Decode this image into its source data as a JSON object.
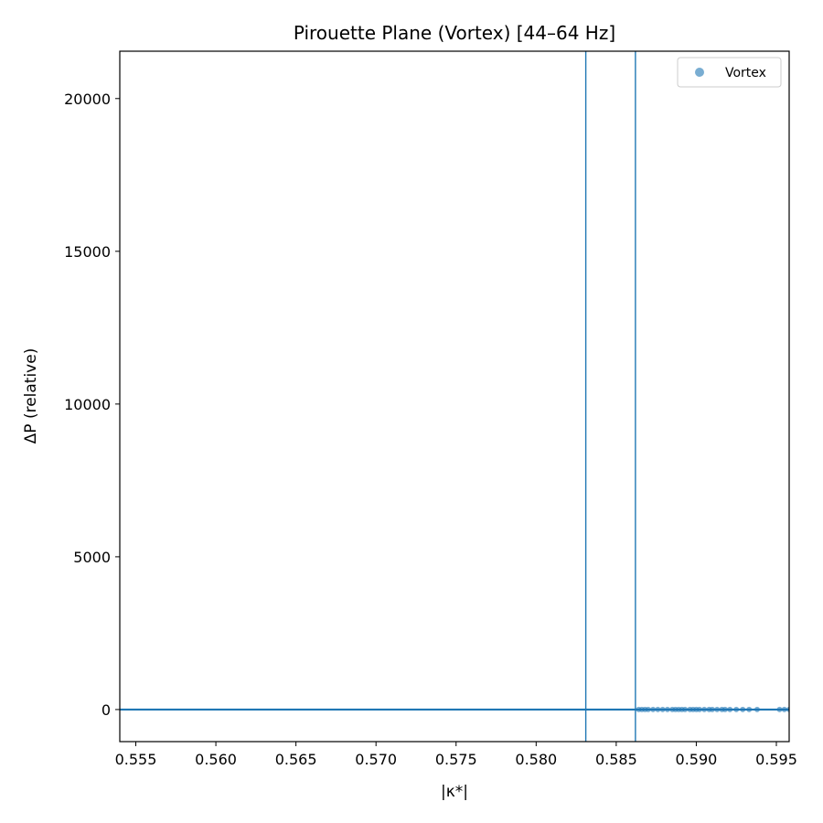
{
  "chart_data": {
    "type": "scatter",
    "title": "Pirouette Plane (Vortex)  [44–64 Hz]",
    "xlabel": "|κ*|",
    "ylabel": "ΔP (relative)",
    "xlim": [
      0.554,
      0.5958
    ],
    "ylim": [
      -1050,
      21550
    ],
    "x_ticks": [
      0.555,
      0.56,
      0.565,
      0.57,
      0.575,
      0.58,
      0.585,
      0.59,
      0.595
    ],
    "x_tick_labels": [
      "0.555",
      "0.560",
      "0.565",
      "0.570",
      "0.575",
      "0.580",
      "0.585",
      "0.590",
      "0.595"
    ],
    "y_ticks": [
      0,
      5000,
      10000,
      15000,
      20000
    ],
    "y_tick_labels": [
      "0",
      "5000",
      "10000",
      "15000",
      "20000"
    ],
    "grid": false,
    "legend": {
      "position": "top-right",
      "entries": [
        "Vortex"
      ]
    },
    "colors": {
      "series": "#1f77b4",
      "axes": "#000000"
    },
    "hlines": [
      0
    ],
    "vlines": [
      0.5831,
      0.5862
    ],
    "series": [
      {
        "name": "Vortex",
        "x": [
          0.5864,
          0.5866,
          0.5868,
          0.587,
          0.5873,
          0.5876,
          0.5879,
          0.5882,
          0.5885,
          0.5887,
          0.5889,
          0.5891,
          0.5893,
          0.5896,
          0.5898,
          0.59,
          0.5902,
          0.5905,
          0.5908,
          0.591,
          0.5913,
          0.5916,
          0.5918,
          0.5921,
          0.5925,
          0.5929,
          0.5933,
          0.5938,
          0.5952,
          0.5955,
          0.5958
        ],
        "y": [
          0,
          0,
          0,
          0,
          0,
          0,
          0,
          0,
          0,
          0,
          0,
          0,
          0,
          0,
          0,
          0,
          0,
          0,
          0,
          0,
          0,
          0,
          0,
          0,
          0,
          0,
          0,
          0,
          0,
          0,
          0
        ]
      }
    ]
  }
}
